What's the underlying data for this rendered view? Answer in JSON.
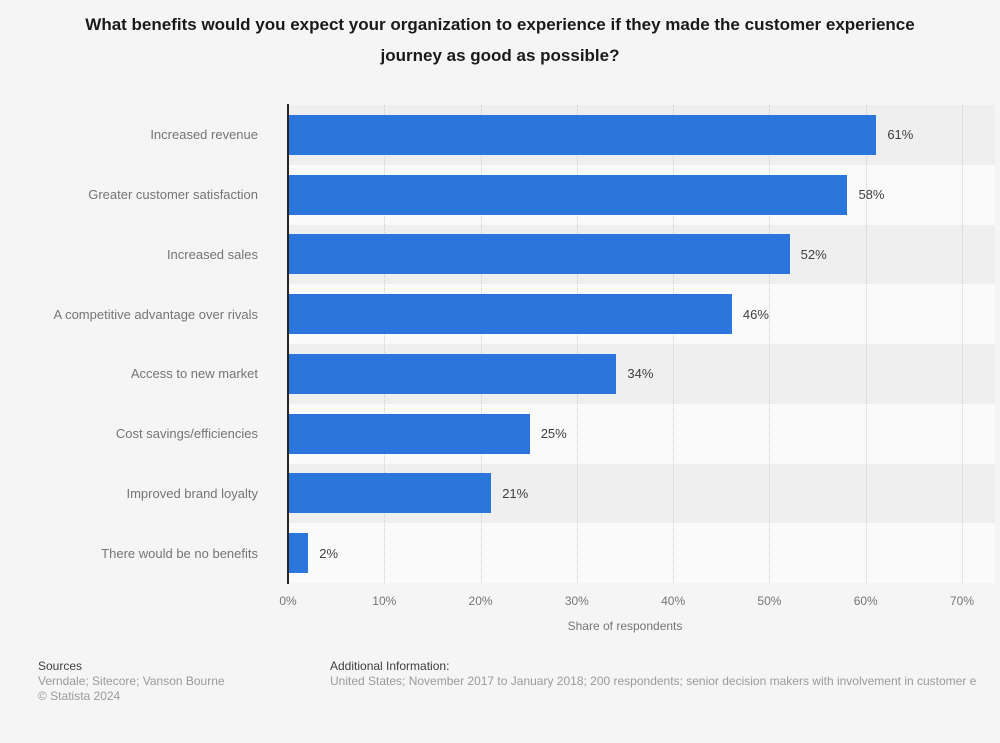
{
  "title": "What benefits would you expect your organization to experience if they made the customer experience journey as good as possible?",
  "chart_data": {
    "type": "bar",
    "orientation": "horizontal",
    "title": "What benefits would you expect your organization to experience if they made the customer experience journey as good as possible?",
    "categories": [
      "Increased revenue",
      "Greater customer satisfaction",
      "Increased sales",
      "A competitive advantage over rivals",
      "Access to new market",
      "Cost savings/efficiencies",
      "Improved brand loyalty",
      "There would be no benefits"
    ],
    "values": [
      61,
      58,
      52,
      46,
      34,
      25,
      21,
      2
    ],
    "value_labels": [
      "61%",
      "58%",
      "52%",
      "46%",
      "34%",
      "25%",
      "21%",
      "2%"
    ],
    "xlabel": "Share of respondents",
    "ylabel": "",
    "xlim": [
      0,
      70
    ],
    "x_ticks": [
      "0%",
      "10%",
      "20%",
      "30%",
      "40%",
      "50%",
      "60%",
      "70%"
    ],
    "grid": "vertical-dotted",
    "legend": "none",
    "bar_color": "#2b76dd",
    "band_colors": [
      "#efefef",
      "#fafafa"
    ]
  },
  "footer": {
    "sources_label": "Sources",
    "sources_text": "Verndale; Sitecore; Vanson Bourne",
    "copyright": "© Statista 2024",
    "additional_label": "Additional Information:",
    "additional_text": "United States; November 2017 to January 2018; 200 respondents; senior decision makers with involvement in customer e"
  },
  "colors": {
    "background": "#f5f5f5",
    "bar": "#2b76dd",
    "axis_line": "#262626",
    "gridline": "#cfcfcf",
    "title_text": "#1a1a1a",
    "category_text": "#757575",
    "value_text": "#404040",
    "footer_text": "#9a9a9a"
  }
}
